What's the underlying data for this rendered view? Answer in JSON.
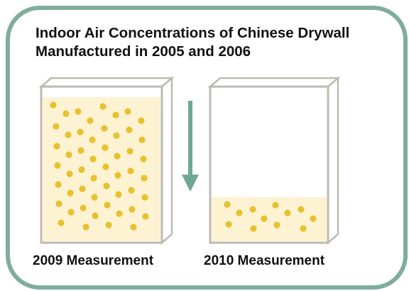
{
  "title": "Indoor Air Concentrations of Chinese Drywall Manufactured in 2005 and 2006",
  "containers": [
    {
      "id": "2009",
      "label": "2009 Measurement",
      "fill_level": 0.94
    },
    {
      "id": "2010",
      "label": "2010 Measurement",
      "fill_level": 0.29
    }
  ],
  "colors": {
    "frame": "#7fae9b",
    "box_outline": "#bdbbae",
    "box_fill": "#fdf3d3",
    "particle": "#e8c12f",
    "arrow": "#6fa896"
  },
  "arrow_direction": "down"
}
